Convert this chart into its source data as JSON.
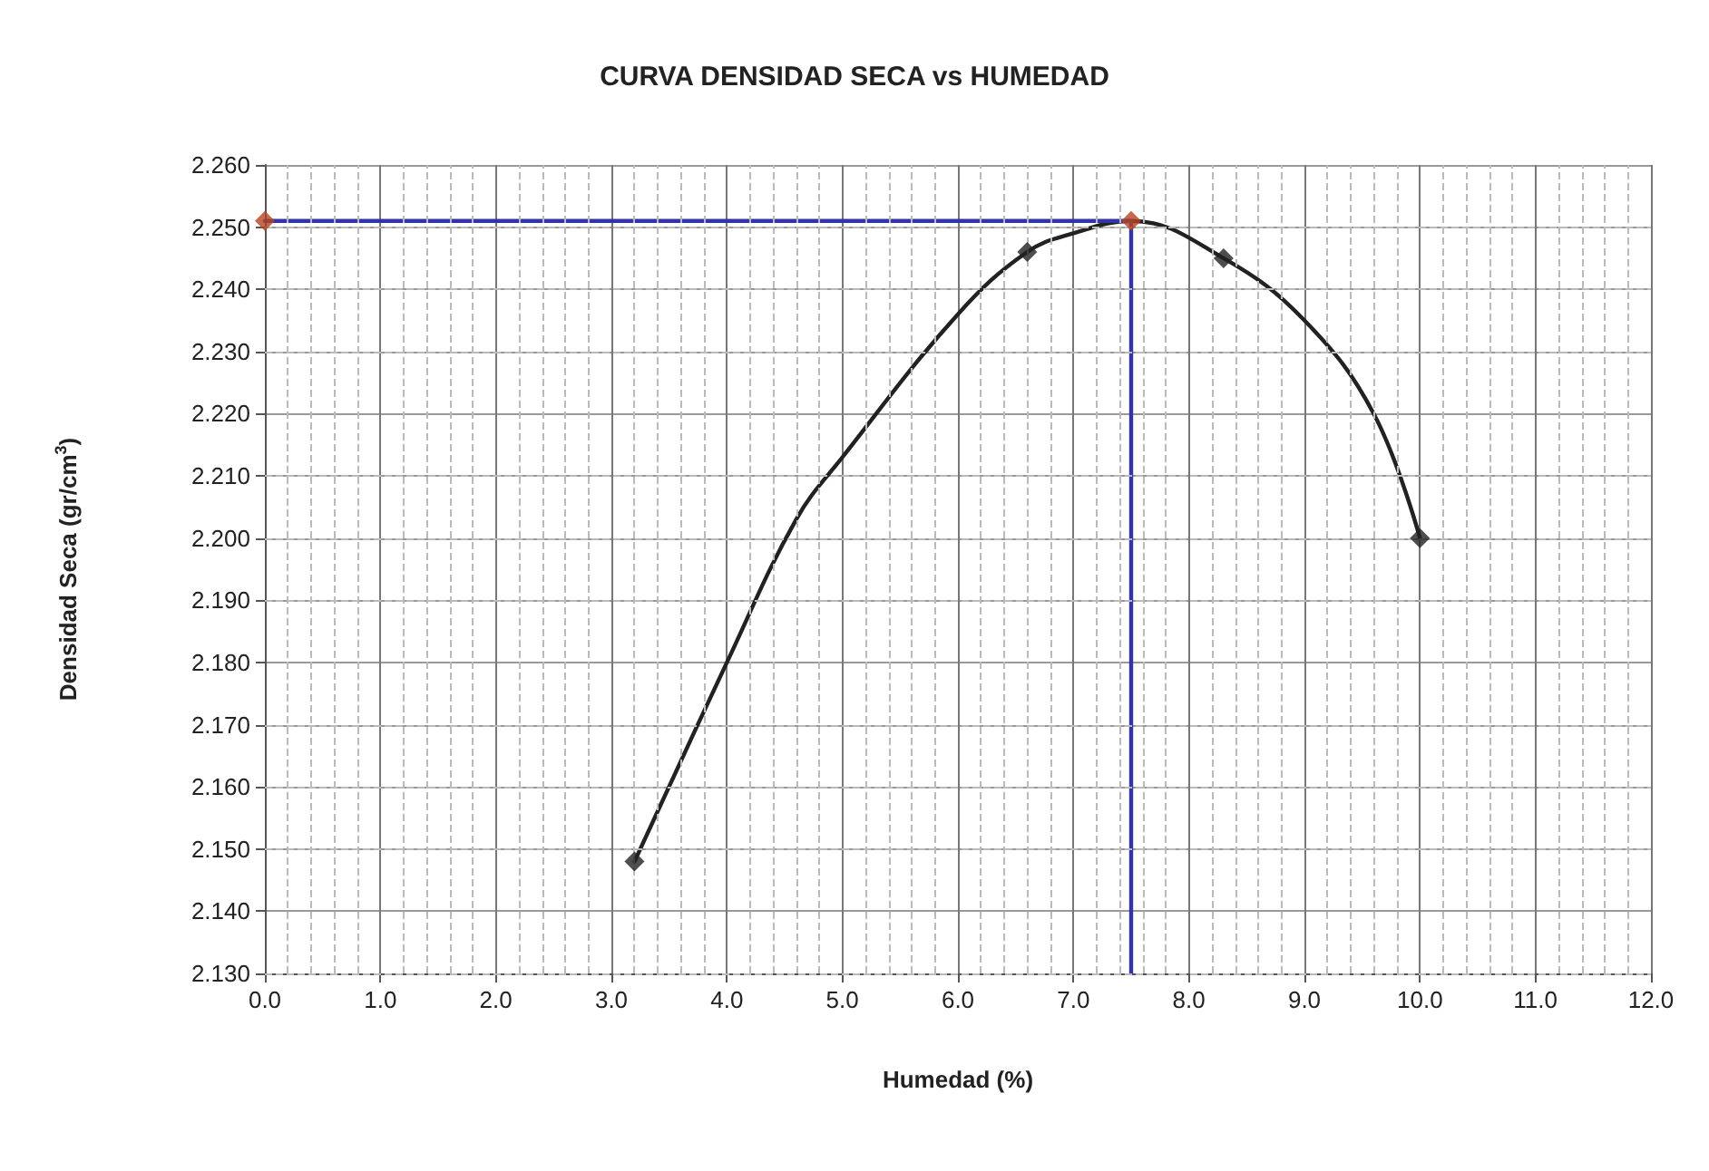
{
  "chart_data": {
    "type": "scatter",
    "title": "CURVA DENSIDAD SECA vs HUMEDAD",
    "xlabel": "Humedad (%)",
    "ylabel": "Densidad Seca (gr/cm$^{3}$)",
    "xlim": [
      0,
      12
    ],
    "ylim": [
      2.13,
      2.26
    ],
    "xticks": [
      {
        "value": 0,
        "label": "0.0"
      },
      {
        "value": 1,
        "label": "1.0"
      },
      {
        "value": 2,
        "label": "2.0"
      },
      {
        "value": 3,
        "label": "3.0"
      },
      {
        "value": 4,
        "label": "4.0"
      },
      {
        "value": 5,
        "label": "5.0"
      },
      {
        "value": 6,
        "label": "6.0"
      },
      {
        "value": 7,
        "label": "7.0"
      },
      {
        "value": 8,
        "label": "8.0"
      },
      {
        "value": 9,
        "label": "9.0"
      },
      {
        "value": 10,
        "label": "10.0"
      },
      {
        "value": 11,
        "label": "11.0"
      },
      {
        "value": 12,
        "label": "12.0"
      }
    ],
    "yticks": [
      {
        "value": 2.13,
        "label": "2.130"
      },
      {
        "value": 2.14,
        "label": "2.140"
      },
      {
        "value": 2.15,
        "label": "2.150"
      },
      {
        "value": 2.16,
        "label": "2.160"
      },
      {
        "value": 2.17,
        "label": "2.170"
      },
      {
        "value": 2.18,
        "label": "2.180"
      },
      {
        "value": 2.19,
        "label": "2.190"
      },
      {
        "value": 2.2,
        "label": "2.200"
      },
      {
        "value": 2.21,
        "label": "2.210"
      },
      {
        "value": 2.22,
        "label": "2.220"
      },
      {
        "value": 2.23,
        "label": "2.230"
      },
      {
        "value": 2.24,
        "label": "2.240"
      },
      {
        "value": 2.25,
        "label": "2.250"
      },
      {
        "value": 2.26,
        "label": "2.260"
      }
    ],
    "grid": true,
    "series": [
      {
        "type": "line",
        "color": "#222222",
        "marker": "none",
        "x": [
          3.2,
          4.0,
          4.6,
          5.0,
          6.0,
          6.6,
          7.0,
          7.5,
          8.3,
          9.0,
          9.6,
          10.0
        ],
        "values": [
          2.148,
          2.18,
          2.203,
          2.213,
          2.236,
          2.246,
          2.249,
          2.251,
          2.245,
          2.235,
          2.22,
          2.2
        ]
      },
      {
        "color": "#222222",
        "marker": "diamond",
        "x": [
          3.2,
          6.6,
          8.3,
          10.0
        ],
        "values": [
          2.148,
          2.246,
          2.245,
          2.2
        ]
      },
      {
        "type": "line",
        "color": "#3333aa",
        "marker": "none",
        "x": [
          0,
          7.5,
          7.5
        ],
        "values": [
          2.251,
          2.251,
          2.13
        ]
      },
      {
        "color": "#b5441e",
        "marker": "diamond",
        "x": [
          0,
          7.5
        ],
        "values": [
          2.251,
          2.251
        ]
      }
    ]
  }
}
